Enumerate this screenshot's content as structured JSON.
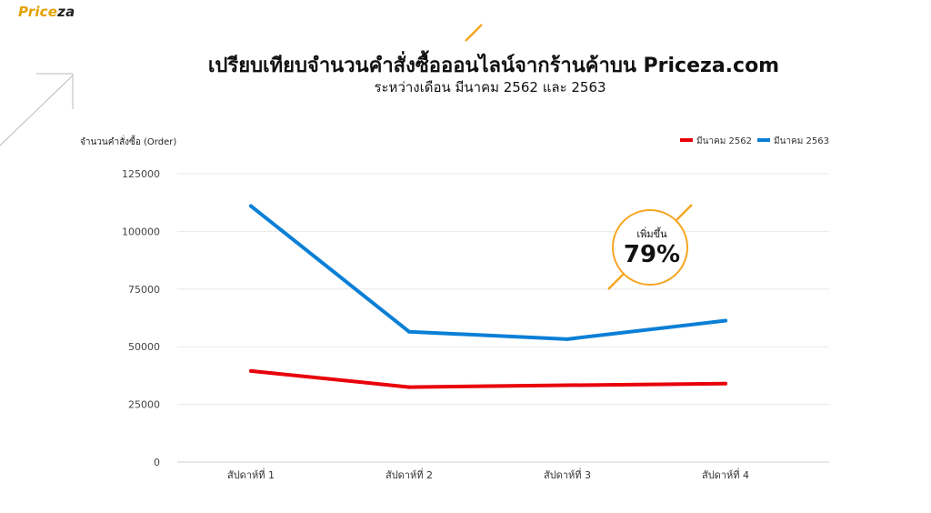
{
  "brand": {
    "logo_main": "Price",
    "logo_accent": "za"
  },
  "header": {
    "title": "เปรียบเทียบจำนวนคำสั่งซื้อออนไลน์จากร้านค้าบน Priceza.com",
    "subtitle": "ระหว่างเดือน มีนาคม 2562 และ 2563"
  },
  "chart_data": {
    "type": "line",
    "ylabel": "จำนวนคำสั่งซื้อ (Order)",
    "categories": [
      "สัปดาห์ที่ 1",
      "สัปดาห์ที่ 2",
      "สัปดาห์ที่ 3",
      "สัปดาห์ที่ 4"
    ],
    "yticks": [
      "0",
      "25000",
      "50000",
      "75000",
      "100000",
      "125000"
    ],
    "ylim": [
      0,
      125000
    ],
    "grid": true,
    "legend_position": "top-right",
    "series": [
      {
        "name": "มีนาคม 2562",
        "color": "#e8000b",
        "values": [
          39500,
          32500,
          33300,
          34000
        ]
      },
      {
        "name": "มีนาคม 2563",
        "color": "#0a7fd6",
        "values": [
          111000,
          56500,
          53300,
          61300
        ]
      }
    ],
    "annotation": {
      "label": "เพิ่มขึ้น",
      "value": "79%",
      "color": "#f5a623"
    }
  }
}
